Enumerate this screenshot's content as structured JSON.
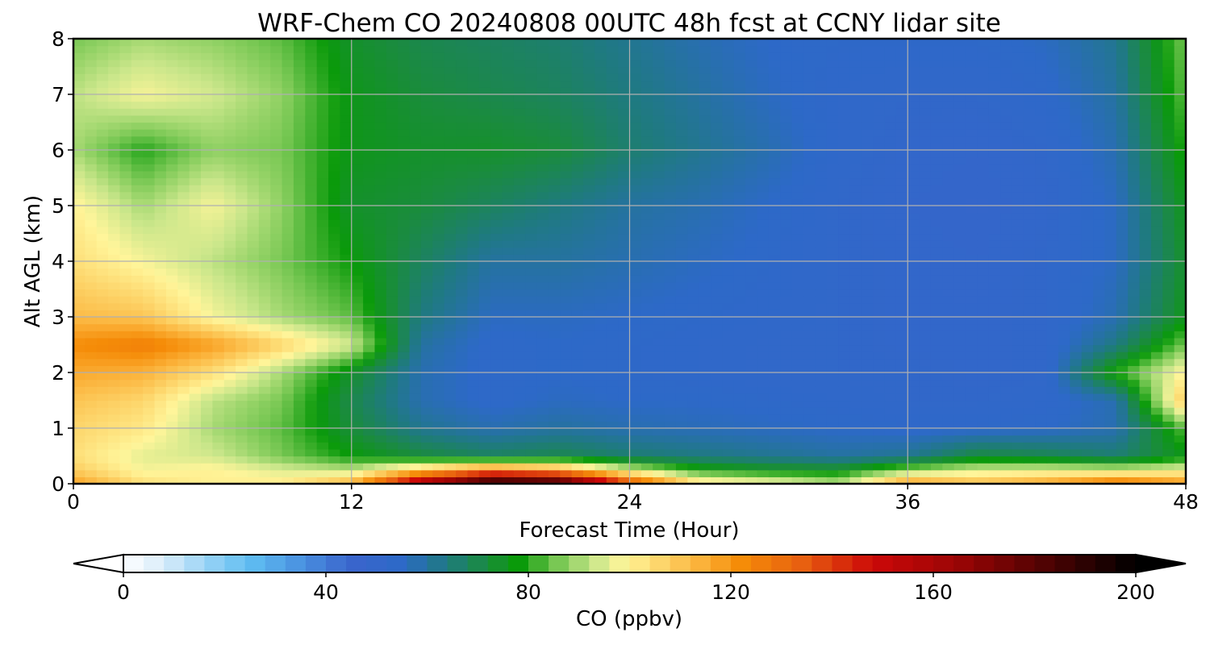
{
  "chart_data": {
    "type": "heatmap",
    "plot_kind": "filled contour (time-height cross section)",
    "title": "WRF-Chem CO  20240808 00UTC 48h fcst at CCNY lidar site",
    "xlabel": "Forecast Time (Hour)",
    "ylabel": "Alt AGL (km)",
    "xlim": [
      0,
      48
    ],
    "ylim": [
      0,
      8
    ],
    "xticks": [
      0,
      12,
      24,
      36,
      48
    ],
    "yticks": [
      0,
      1,
      2,
      3,
      4,
      5,
      6,
      7,
      8
    ],
    "grid": true,
    "x": [
      0,
      3,
      6,
      9,
      12,
      15,
      18,
      21,
      24,
      27,
      30,
      33,
      36,
      39,
      42,
      45,
      48
    ],
    "y": [
      0,
      0.25,
      0.5,
      1,
      1.5,
      2,
      2.5,
      3,
      4,
      5,
      6,
      7,
      8
    ],
    "z": [
      [
        118,
        104,
        100,
        102,
        115,
        165,
        200,
        195,
        140,
        105,
        100,
        92,
        120,
        112,
        118,
        130,
        120
      ],
      [
        108,
        98,
        100,
        95,
        92,
        110,
        125,
        118,
        95,
        80,
        76,
        75,
        88,
        95,
        96,
        94,
        98
      ],
      [
        104,
        96,
        94,
        86,
        78,
        72,
        68,
        70,
        66,
        64,
        62,
        60,
        62,
        72,
        70,
        66,
        76
      ],
      [
        106,
        102,
        90,
        84,
        72,
        62,
        58,
        60,
        58,
        57,
        56,
        55,
        54,
        54,
        55,
        58,
        84
      ],
      [
        110,
        106,
        92,
        86,
        70,
        58,
        54,
        56,
        55,
        55,
        54,
        53,
        52,
        52,
        53,
        58,
        110
      ],
      [
        116,
        114,
        104,
        90,
        74,
        58,
        54,
        55,
        54,
        53,
        52,
        52,
        52,
        51,
        52,
        80,
        100
      ],
      [
        122,
        126,
        118,
        106,
        94,
        60,
        54,
        55,
        54,
        53,
        52,
        52,
        51,
        51,
        52,
        64,
        86
      ],
      [
        112,
        110,
        98,
        90,
        84,
        64,
        56,
        56,
        55,
        54,
        53,
        52,
        51,
        51,
        52,
        58,
        76
      ],
      [
        104,
        98,
        92,
        86,
        78,
        68,
        60,
        60,
        58,
        56,
        54,
        52,
        51,
        50,
        52,
        56,
        74
      ],
      [
        100,
        90,
        98,
        88,
        74,
        72,
        68,
        64,
        60,
        58,
        55,
        52,
        50,
        49,
        51,
        56,
        76
      ],
      [
        90,
        80,
        88,
        86,
        76,
        74,
        74,
        72,
        66,
        62,
        58,
        53,
        51,
        50,
        52,
        58,
        80
      ],
      [
        92,
        98,
        94,
        88,
        76,
        72,
        70,
        68,
        64,
        60,
        56,
        53,
        52,
        52,
        54,
        60,
        84
      ],
      [
        86,
        90,
        88,
        84,
        74,
        70,
        68,
        66,
        62,
        58,
        55,
        54,
        54,
        54,
        56,
        62,
        86
      ]
    ],
    "zunits": "ppbv",
    "colorbar": {
      "label": "CO  (ppbv)",
      "min": 0,
      "max": 200,
      "ticks": [
        0,
        40,
        80,
        120,
        160,
        200
      ],
      "extend": "both",
      "orientation": "horizontal",
      "colors": [
        {
          "v": 0,
          "c": "#ffffff"
        },
        {
          "v": 8,
          "c": "#d8ecfa"
        },
        {
          "v": 16,
          "c": "#9cd4f6"
        },
        {
          "v": 25,
          "c": "#5fbdf2"
        },
        {
          "v": 35,
          "c": "#4a92e0"
        },
        {
          "v": 45,
          "c": "#3a64cc"
        },
        {
          "v": 55,
          "c": "#2d69c8"
        },
        {
          "v": 64,
          "c": "#1f7a80"
        },
        {
          "v": 72,
          "c": "#1a8c3c"
        },
        {
          "v": 78,
          "c": "#0a9a0a"
        },
        {
          "v": 86,
          "c": "#79c854"
        },
        {
          "v": 93,
          "c": "#c9e68a"
        },
        {
          "v": 99,
          "c": "#fff59a"
        },
        {
          "v": 106,
          "c": "#fdd66c"
        },
        {
          "v": 114,
          "c": "#fbb23a"
        },
        {
          "v": 122,
          "c": "#f58c08"
        },
        {
          "v": 134,
          "c": "#e86010"
        },
        {
          "v": 148,
          "c": "#cc0808"
        },
        {
          "v": 165,
          "c": "#9a0505"
        },
        {
          "v": 182,
          "c": "#500303"
        },
        {
          "v": 200,
          "c": "#000000"
        }
      ]
    }
  }
}
